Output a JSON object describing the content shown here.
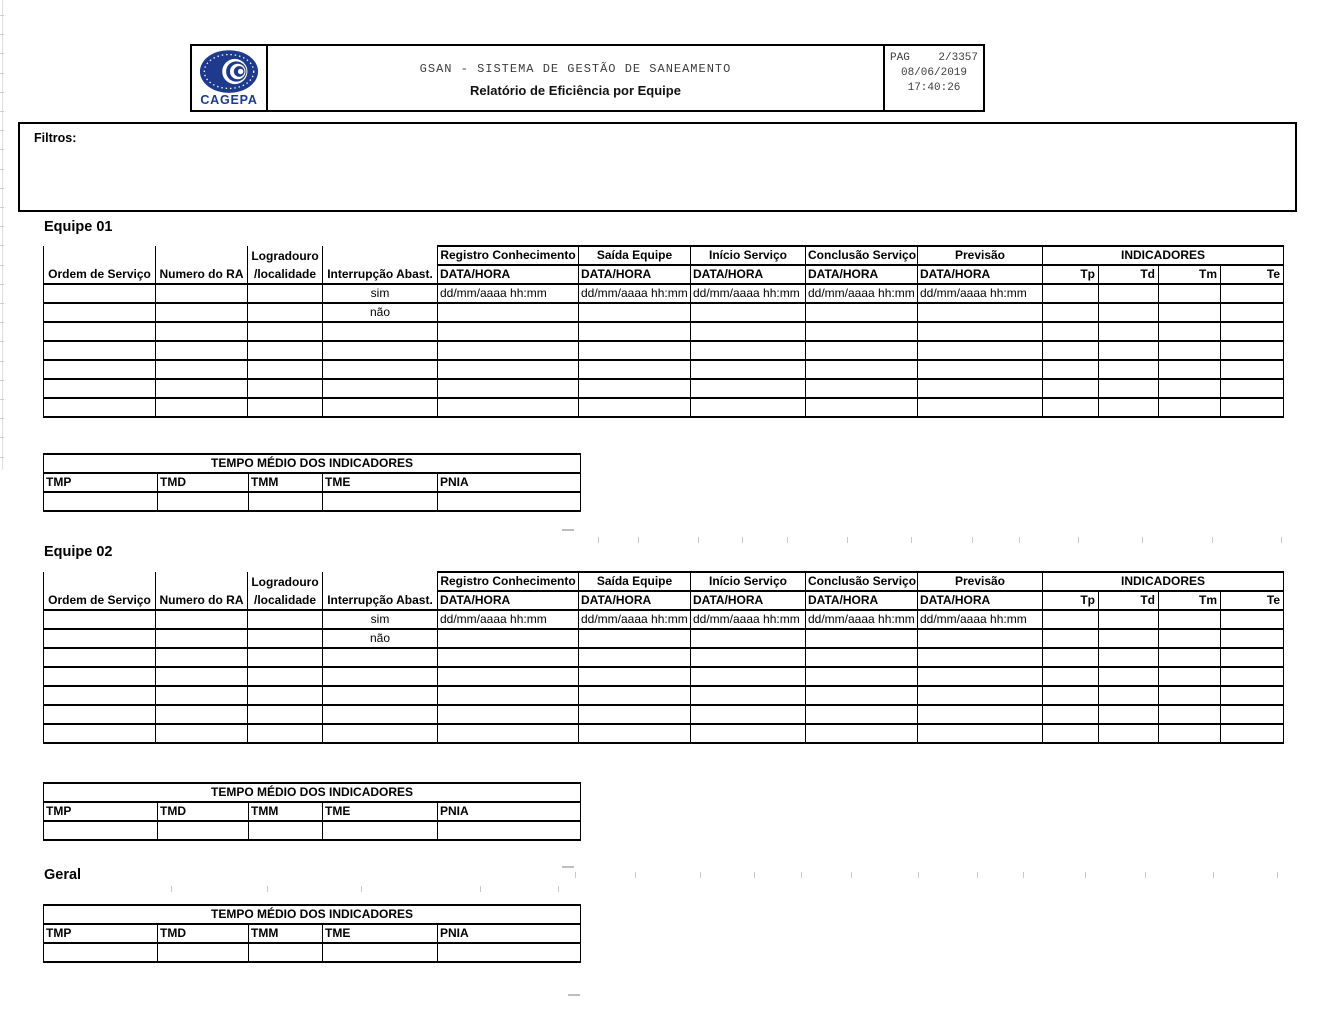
{
  "header": {
    "logo_text": "CAGEPA",
    "title": "GSAN - SISTEMA DE GESTÃO DE SANEAMENTO",
    "subtitle": "Relatório de Eficiência por Equipe",
    "pag_label": "PAG",
    "pag_value": "2/3357",
    "date": "08/06/2019",
    "time": "17:40:26"
  },
  "filters_label": "Filtros:",
  "sections": [
    {
      "heading": "Equipe 01",
      "has_service_table": true,
      "has_avg_table": true
    },
    {
      "heading": "Equipe 02",
      "has_service_table": true,
      "has_avg_table": true
    },
    {
      "heading": "Geral",
      "has_service_table": false,
      "has_avg_table": true
    }
  ],
  "service_table": {
    "merged_headers": [
      {
        "line1": "",
        "line2": "Ordem de Serviço"
      },
      {
        "line1": "",
        "line2": "Numero do RA"
      },
      {
        "line1": "Logradouro",
        "line2": "/localidade"
      },
      {
        "line1": "",
        "line2": "Interrupção Abast."
      }
    ],
    "datetime_groups": [
      "Registro Conhecimento",
      "Saída Equipe",
      "Início Serviço",
      "Conclusão Serviço",
      "Previsão"
    ],
    "datetime_subheader": "DATA/HORA",
    "indicators_title": "INDICADORES",
    "indicator_cols": [
      "Tp",
      "Td",
      "Tm",
      "Te"
    ],
    "rows": [
      {
        "interrupcao_abast": "sim",
        "datetimes": [
          "dd/mm/aaaa hh:mm",
          "dd/mm/aaaa hh:mm",
          "dd/mm/aaaa hh:mm",
          "dd/mm/aaaa hh:mm",
          "dd/mm/aaaa hh:mm"
        ],
        "indicators": [
          "",
          "",
          "",
          ""
        ]
      },
      {
        "interrupcao_abast": "não",
        "datetimes": [
          "",
          "",
          "",
          "",
          ""
        ],
        "indicators": [
          "",
          "",
          "",
          ""
        ]
      },
      {
        "interrupcao_abast": "",
        "datetimes": [
          "",
          "",
          "",
          "",
          ""
        ],
        "indicators": [
          "",
          "",
          "",
          ""
        ]
      },
      {
        "interrupcao_abast": "",
        "datetimes": [
          "",
          "",
          "",
          "",
          ""
        ],
        "indicators": [
          "",
          "",
          "",
          ""
        ]
      },
      {
        "interrupcao_abast": "",
        "datetimes": [
          "",
          "",
          "",
          "",
          ""
        ],
        "indicators": [
          "",
          "",
          "",
          ""
        ]
      },
      {
        "interrupcao_abast": "",
        "datetimes": [
          "",
          "",
          "",
          "",
          ""
        ],
        "indicators": [
          "",
          "",
          "",
          ""
        ]
      },
      {
        "interrupcao_abast": "",
        "datetimes": [
          "",
          "",
          "",
          "",
          ""
        ],
        "indicators": [
          "",
          "",
          "",
          ""
        ]
      }
    ]
  },
  "avg_table": {
    "title": "TEMPO MÉDIO DOS INDICADORES",
    "columns": [
      "TMP",
      "TMD",
      "TMM",
      "TME",
      "PNIA"
    ],
    "values": [
      "",
      "",
      "",
      "",
      ""
    ]
  },
  "colors": {
    "logo_navy": "#1e3a8d"
  }
}
